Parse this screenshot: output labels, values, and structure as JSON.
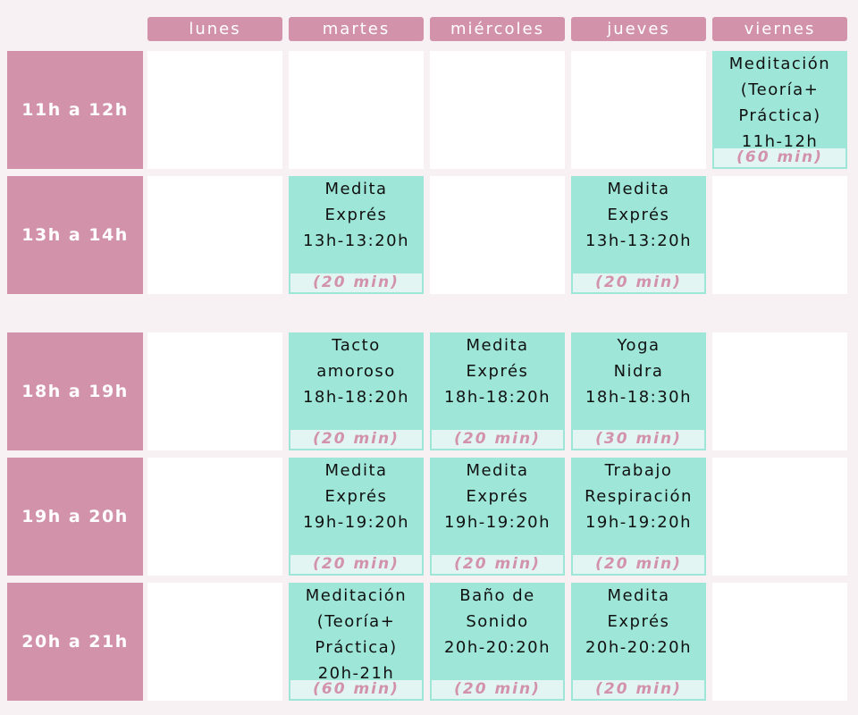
{
  "days": [
    "lunes",
    "martes",
    "miércoles",
    "jueves",
    "viernes"
  ],
  "time_slots": [
    "11h a 12h",
    "13h a 14h",
    "18h a 19h",
    "19h a 20h",
    "20h a 21h"
  ],
  "events": [
    {
      "slot": "11h a 12h",
      "day": "viernes",
      "lines": [
        "Meditación",
        "(Teoría+",
        "Práctica)",
        "11h-12h"
      ],
      "duration": "(60 min)"
    },
    {
      "slot": "13h a 14h",
      "day": "martes",
      "lines": [
        "Medita",
        "Exprés",
        "13h-13:20h"
      ],
      "duration": "(20 min)"
    },
    {
      "slot": "13h a 14h",
      "day": "jueves",
      "lines": [
        "Medita",
        "Exprés",
        "13h-13:20h"
      ],
      "duration": "(20 min)"
    },
    {
      "slot": "18h a 19h",
      "day": "martes",
      "lines": [
        "Tacto",
        "amoroso",
        "18h-18:20h"
      ],
      "duration": "(20 min)"
    },
    {
      "slot": "18h a 19h",
      "day": "miércoles",
      "lines": [
        "Medita",
        "Exprés",
        "18h-18:20h"
      ],
      "duration": "(20 min)"
    },
    {
      "slot": "18h a 19h",
      "day": "jueves",
      "lines": [
        "Yoga",
        "Nidra",
        "18h-18:30h"
      ],
      "duration": "(30 min)"
    },
    {
      "slot": "19h a 20h",
      "day": "martes",
      "lines": [
        "Medita",
        "Exprés",
        "19h-19:20h"
      ],
      "duration": "(20 min)"
    },
    {
      "slot": "19h a 20h",
      "day": "miércoles",
      "lines": [
        "Medita",
        "Exprés",
        "19h-19:20h"
      ],
      "duration": "(20 min)"
    },
    {
      "slot": "19h a 20h",
      "day": "jueves",
      "lines": [
        "Trabajo",
        "Respiración",
        "19h-19:20h"
      ],
      "duration": "(20 min)"
    },
    {
      "slot": "20h a 21h",
      "day": "martes",
      "lines": [
        "Meditación",
        "(Teoría+",
        "Práctica)",
        "20h-21h"
      ],
      "duration": "(60 min)"
    },
    {
      "slot": "20h a 21h",
      "day": "miércoles",
      "lines": [
        "Baño de",
        "Sonido",
        "20h-20:20h"
      ],
      "duration": "(20 min)"
    },
    {
      "slot": "20h a 21h",
      "day": "jueves",
      "lines": [
        "Medita",
        "Exprés",
        "20h-20:20h"
      ],
      "duration": "(20 min)"
    }
  ],
  "colors": {
    "header_pink": "#d292aa",
    "event_teal": "#9de6d8",
    "background": "#f7f1f4"
  }
}
